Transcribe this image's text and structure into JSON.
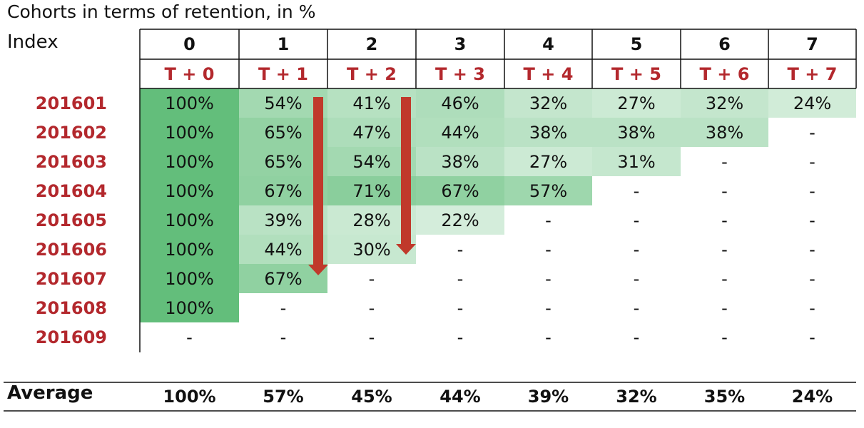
{
  "title": "Cohorts in terms of retention, in %",
  "index_label": "Index",
  "average_label": "Average",
  "colors": {
    "header_red": "#b3282d",
    "green_strong": "#63be7b",
    "arrow": "#c0392b"
  },
  "chart_data": {
    "type": "table",
    "title": "Cohorts in terms of retention, in %",
    "columns": [
      "0",
      "1",
      "2",
      "3",
      "4",
      "5",
      "6",
      "7"
    ],
    "period_labels": [
      "T + 0",
      "T + 1",
      "T + 2",
      "T + 3",
      "T + 4",
      "T + 5",
      "T + 6",
      "T + 7"
    ],
    "rows": [
      {
        "cohort": "201601",
        "values": [
          "100%",
          "54%",
          "41%",
          "46%",
          "32%",
          "27%",
          "32%",
          "24%"
        ]
      },
      {
        "cohort": "201602",
        "values": [
          "100%",
          "65%",
          "47%",
          "44%",
          "38%",
          "38%",
          "38%",
          "-"
        ]
      },
      {
        "cohort": "201603",
        "values": [
          "100%",
          "65%",
          "54%",
          "38%",
          "27%",
          "31%",
          "-",
          "-"
        ]
      },
      {
        "cohort": "201604",
        "values": [
          "100%",
          "67%",
          "71%",
          "67%",
          "57%",
          "-",
          "-",
          "-"
        ]
      },
      {
        "cohort": "201605",
        "values": [
          "100%",
          "39%",
          "28%",
          "22%",
          "-",
          "-",
          "-",
          "-"
        ]
      },
      {
        "cohort": "201606",
        "values": [
          "100%",
          "44%",
          "30%",
          "-",
          "-",
          "-",
          "-",
          "-"
        ]
      },
      {
        "cohort": "201607",
        "values": [
          "100%",
          "67%",
          "-",
          "-",
          "-",
          "-",
          "-",
          "-"
        ]
      },
      {
        "cohort": "201608",
        "values": [
          "100%",
          "-",
          "-",
          "-",
          "-",
          "-",
          "-",
          "-"
        ]
      },
      {
        "cohort": "201609",
        "values": [
          "-",
          "-",
          "-",
          "-",
          "-",
          "-",
          "-",
          "-"
        ]
      }
    ],
    "averages": [
      "100%",
      "57%",
      "45%",
      "44%",
      "39%",
      "32%",
      "35%",
      "24%"
    ],
    "arrows_columns": [
      1,
      2
    ]
  }
}
